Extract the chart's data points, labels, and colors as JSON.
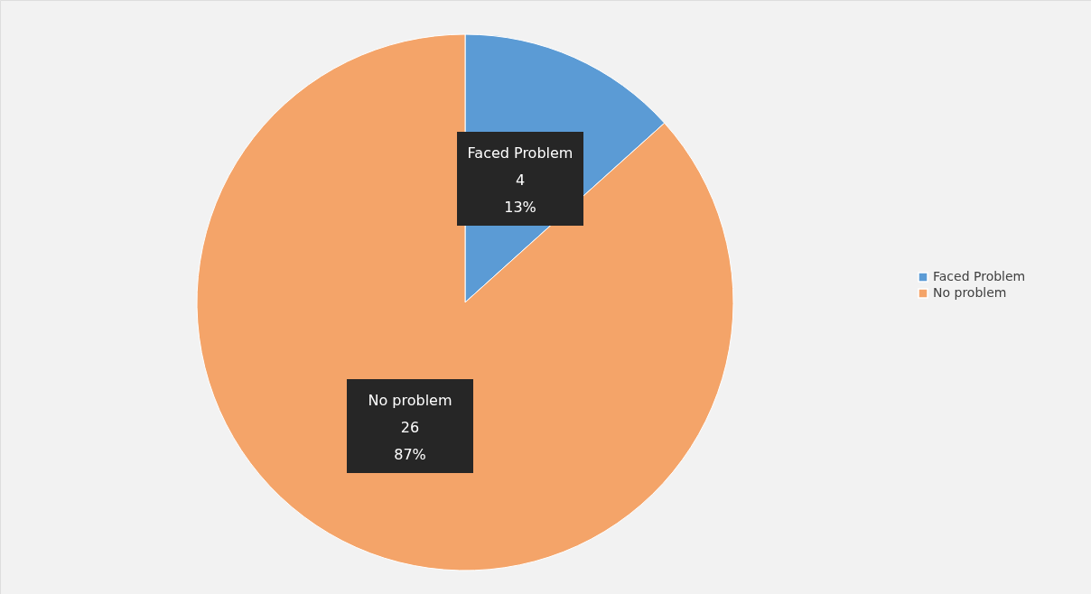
{
  "chart_data": {
    "type": "pie",
    "categories": [
      "Faced Problem",
      "No problem"
    ],
    "values": [
      4,
      26
    ],
    "colors": [
      "#5b9bd5",
      "#f4a469"
    ],
    "value_labels": [
      "4\n13%",
      "26\n87%"
    ],
    "legend": "right"
  }
}
